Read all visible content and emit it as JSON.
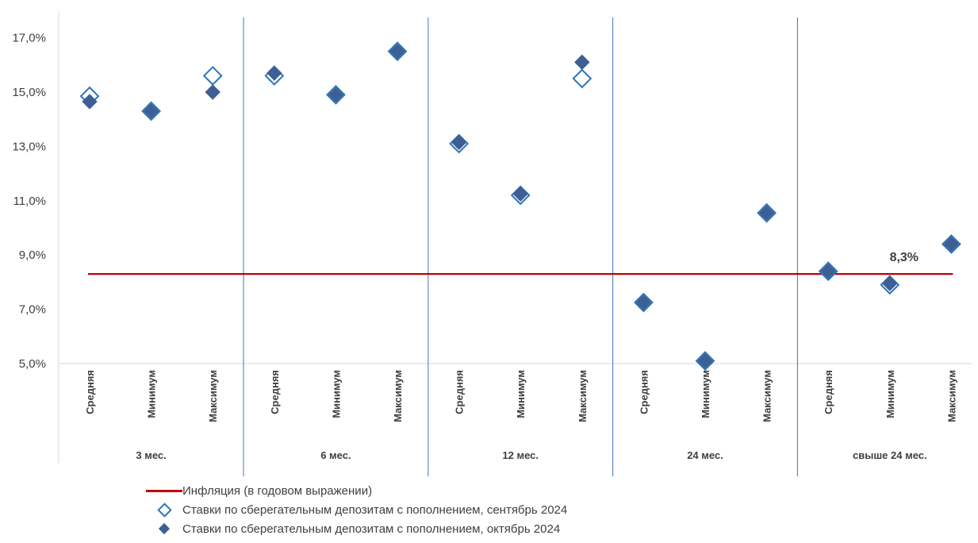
{
  "chart_data": {
    "type": "scatter",
    "groups": [
      {
        "label": "3 мес.",
        "categories": [
          "Средняя",
          "Минимум",
          "Максимум"
        ]
      },
      {
        "label": "6 мес.",
        "categories": [
          "Средняя",
          "Минимум",
          "Максимум"
        ]
      },
      {
        "label": "12 мес.",
        "categories": [
          "Средняя",
          "Минимум",
          "Максимум"
        ]
      },
      {
        "label": "24 мес.",
        "categories": [
          "Средняя",
          "Минимум",
          "Максимум"
        ]
      },
      {
        "label": "свыше 24 мес.",
        "categories": [
          "Средняя",
          "Минимум",
          "Максимум"
        ]
      }
    ],
    "yticks": [
      "5,0%",
      "7,0%",
      "9,0%",
      "11,0%",
      "13,0%",
      "15,0%",
      "17,0%"
    ],
    "ylim": [
      5,
      17.5
    ],
    "series": [
      {
        "name": "Ставки по сберегательным депозитам с пополнением, сентябрь 2024",
        "marker": "diamond-open",
        "color": "#2E75B6",
        "values": [
          14.85,
          14.3,
          15.6,
          15.6,
          14.9,
          16.5,
          13.1,
          11.2,
          15.5,
          7.25,
          5.1,
          10.55,
          8.4,
          7.9,
          9.4
        ]
      },
      {
        "name": "Ставки по сберегательным депозитам с пополнением,  октябрь 2024",
        "marker": "diamond-filled",
        "color": "#3E5F94",
        "values": [
          14.65,
          14.3,
          15.0,
          15.7,
          14.9,
          16.5,
          13.15,
          11.25,
          16.1,
          7.25,
          5.1,
          10.55,
          8.4,
          7.95,
          9.4
        ]
      }
    ],
    "reference_line": {
      "name": "Инфляция (в годовом выражении)",
      "value": 8.3,
      "label": "8,3%",
      "color": "#C00000"
    },
    "legend_placement": "bottom",
    "grid": false
  },
  "legend": {
    "line_label": "Инфляция (в годовом выражении)",
    "sep_label": "Ставки по сберегательным депозитам с пополнением, сентябрь 2024",
    "oct_label": "Ставки по сберегательным депозитам с пополнением,  октябрь 2024"
  }
}
